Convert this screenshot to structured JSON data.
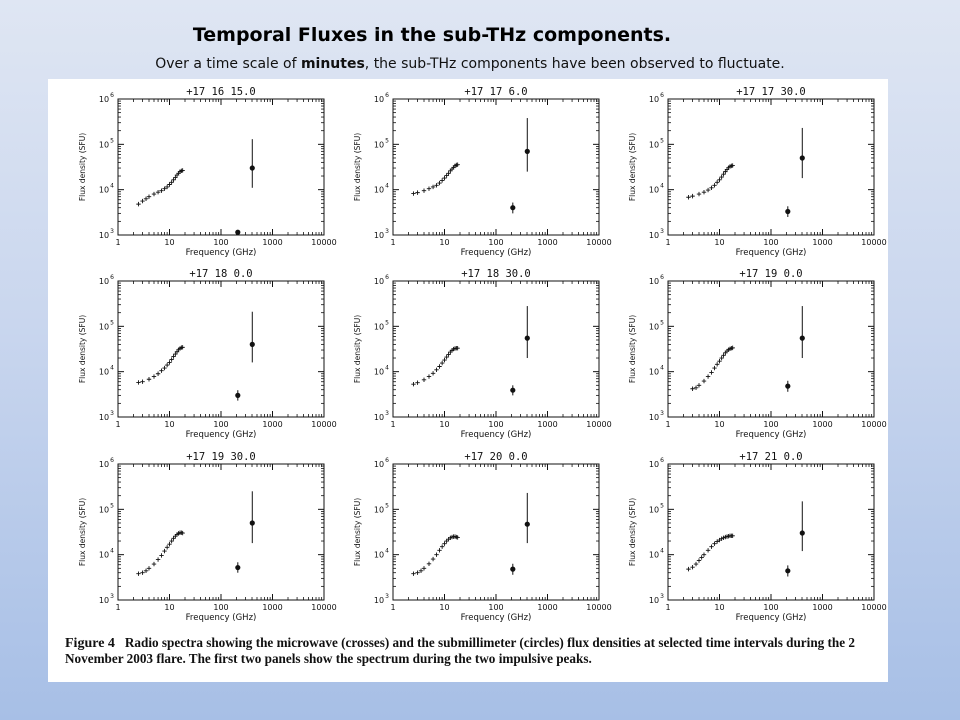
{
  "slide": {
    "title": "Temporal Fluxes in the sub-THz components.",
    "subtitle": {
      "before": "Over a time scale of ",
      "emphasis": "minutes",
      "after": ", the sub-THz components have been observed to fluctuate."
    }
  },
  "figure": {
    "label": "Figure 4",
    "caption": "Radio spectra showing the microwave (crosses) and the submillimeter (circles) flux densities at selected time intervals during the 2 November 2003 flare. The first two panels show the spectrum during the two impulsive peaks."
  },
  "colors": {
    "ink": "#111111",
    "background_top": "#dfe6f3",
    "background_bottom": "#a7bfe6",
    "frame": "#ffffff"
  },
  "chart_data": {
    "type": "scatter",
    "grid": false,
    "layout": "3x3 panels",
    "xlabel": "Frequency (GHz)",
    "ylabel": "Flux density (SFU)",
    "xscale": "log",
    "yscale": "log",
    "xlim": [
      1,
      10000
    ],
    "ylim": [
      1000,
      1000000
    ],
    "x_ticks": [
      "1",
      "10",
      "100",
      "1000",
      "10000"
    ],
    "y_tick_exponents": [
      "3",
      "4",
      "5",
      "6"
    ],
    "panels": [
      {
        "title": "+17 16 15.0",
        "microwave": [
          [
            2.5,
            4800
          ],
          [
            3,
            5600
          ],
          [
            3.5,
            6300
          ],
          [
            4,
            7000
          ],
          [
            5,
            8000
          ],
          [
            6,
            8800
          ],
          [
            7,
            9500
          ],
          [
            8,
            10500
          ],
          [
            9,
            11500
          ],
          [
            10,
            13000
          ],
          [
            11,
            14500
          ],
          [
            12,
            16500
          ],
          [
            13,
            18500
          ],
          [
            14,
            21000
          ],
          [
            15,
            23000
          ],
          [
            16,
            25000
          ],
          [
            17,
            26000
          ],
          [
            18,
            26500
          ]
        ],
        "submm": [
          {
            "x": 212,
            "y": 1150,
            "lo": 1050,
            "hi": 1250
          },
          {
            "x": 405,
            "y": 30000,
            "lo": 11000,
            "hi": 130000
          }
        ]
      },
      {
        "title": "+17 17 6.0",
        "microwave": [
          [
            2.5,
            8200
          ],
          [
            3,
            8600
          ],
          [
            4,
            9500
          ],
          [
            5,
            10500
          ],
          [
            6,
            11500
          ],
          [
            7,
            12500
          ],
          [
            8,
            14000
          ],
          [
            9,
            16000
          ],
          [
            10,
            18000
          ],
          [
            11,
            20500
          ],
          [
            12,
            23000
          ],
          [
            13,
            26000
          ],
          [
            14,
            28500
          ],
          [
            15,
            31000
          ],
          [
            16,
            33500
          ],
          [
            17,
            35000
          ],
          [
            18,
            35500
          ]
        ],
        "submm": [
          {
            "x": 212,
            "y": 4000,
            "lo": 3000,
            "hi": 5200
          },
          {
            "x": 405,
            "y": 70000,
            "lo": 25000,
            "hi": 380000
          }
        ]
      },
      {
        "title": "+17 17 30.0",
        "microwave": [
          [
            2.5,
            6800
          ],
          [
            3,
            7200
          ],
          [
            4,
            8000
          ],
          [
            5,
            8800
          ],
          [
            6,
            9800
          ],
          [
            7,
            11000
          ],
          [
            8,
            12500
          ],
          [
            9,
            14500
          ],
          [
            10,
            16500
          ],
          [
            11,
            19000
          ],
          [
            12,
            22000
          ],
          [
            13,
            25000
          ],
          [
            14,
            28000
          ],
          [
            15,
            30500
          ],
          [
            16,
            32500
          ],
          [
            17,
            33500
          ],
          [
            18,
            34000
          ]
        ],
        "submm": [
          {
            "x": 212,
            "y": 3300,
            "lo": 2500,
            "hi": 4300
          },
          {
            "x": 405,
            "y": 50000,
            "lo": 18000,
            "hi": 230000
          }
        ]
      },
      {
        "title": "+17 18 0.0",
        "microwave": [
          [
            2.5,
            5800
          ],
          [
            3,
            6000
          ],
          [
            4,
            6800
          ],
          [
            5,
            7800
          ],
          [
            6,
            9000
          ],
          [
            7,
            10500
          ],
          [
            8,
            12000
          ],
          [
            9,
            14000
          ],
          [
            10,
            16000
          ],
          [
            11,
            18500
          ],
          [
            12,
            21500
          ],
          [
            13,
            24500
          ],
          [
            14,
            27500
          ],
          [
            15,
            30500
          ],
          [
            16,
            32500
          ],
          [
            17,
            34000
          ],
          [
            18,
            34500
          ]
        ],
        "submm": [
          {
            "x": 212,
            "y": 3000,
            "lo": 2300,
            "hi": 3900
          },
          {
            "x": 405,
            "y": 40000,
            "lo": 16000,
            "hi": 210000
          }
        ]
      },
      {
        "title": "+17 18 30.0",
        "microwave": [
          [
            2.5,
            5300
          ],
          [
            3,
            5700
          ],
          [
            4,
            6600
          ],
          [
            5,
            7800
          ],
          [
            6,
            9200
          ],
          [
            7,
            11000
          ],
          [
            8,
            13000
          ],
          [
            9,
            15500
          ],
          [
            10,
            18000
          ],
          [
            11,
            21000
          ],
          [
            12,
            24000
          ],
          [
            13,
            27000
          ],
          [
            14,
            29500
          ],
          [
            15,
            31500
          ],
          [
            16,
            32500
          ],
          [
            17,
            33000
          ],
          [
            18,
            33000
          ]
        ],
        "submm": [
          {
            "x": 212,
            "y": 3900,
            "lo": 3000,
            "hi": 5000
          },
          {
            "x": 405,
            "y": 55000,
            "lo": 20000,
            "hi": 280000
          }
        ]
      },
      {
        "title": "+17 19 0.0",
        "microwave": [
          [
            3,
            4200
          ],
          [
            3.5,
            4400
          ],
          [
            4,
            5000
          ],
          [
            5,
            6200
          ],
          [
            6,
            7800
          ],
          [
            7,
            9600
          ],
          [
            8,
            12000
          ],
          [
            9,
            14500
          ],
          [
            10,
            17000
          ],
          [
            11,
            20000
          ],
          [
            12,
            23000
          ],
          [
            13,
            26000
          ],
          [
            14,
            28500
          ],
          [
            15,
            30500
          ],
          [
            16,
            32000
          ],
          [
            17,
            33000
          ],
          [
            18,
            33500
          ]
        ],
        "submm": [
          {
            "x": 212,
            "y": 4800,
            "lo": 3600,
            "hi": 6300
          },
          {
            "x": 405,
            "y": 55000,
            "lo": 20000,
            "hi": 280000
          }
        ]
      },
      {
        "title": "+17 19 30.0",
        "microwave": [
          [
            2.5,
            3800
          ],
          [
            3,
            4000
          ],
          [
            3.5,
            4400
          ],
          [
            4,
            5000
          ],
          [
            5,
            6200
          ],
          [
            6,
            7800
          ],
          [
            7,
            9600
          ],
          [
            8,
            12000
          ],
          [
            9,
            14500
          ],
          [
            10,
            17000
          ],
          [
            11,
            20000
          ],
          [
            12,
            23000
          ],
          [
            13,
            25500
          ],
          [
            14,
            28000
          ],
          [
            15,
            29500
          ],
          [
            16,
            30500
          ],
          [
            17,
            30500
          ],
          [
            18,
            30000
          ]
        ],
        "submm": [
          {
            "x": 212,
            "y": 5200,
            "lo": 4000,
            "hi": 6800
          },
          {
            "x": 405,
            "y": 50000,
            "lo": 18000,
            "hi": 250000
          }
        ]
      },
      {
        "title": "+17 20 0.0",
        "microwave": [
          [
            2.5,
            3800
          ],
          [
            3,
            4000
          ],
          [
            3.5,
            4400
          ],
          [
            4,
            5000
          ],
          [
            5,
            6300
          ],
          [
            6,
            8000
          ],
          [
            7,
            10000
          ],
          [
            8,
            12500
          ],
          [
            9,
            15000
          ],
          [
            10,
            17500
          ],
          [
            11,
            20000
          ],
          [
            12,
            22000
          ],
          [
            13,
            23500
          ],
          [
            14,
            24500
          ],
          [
            15,
            25000
          ],
          [
            16,
            25000
          ],
          [
            17,
            24500
          ],
          [
            18,
            24000
          ]
        ],
        "submm": [
          {
            "x": 212,
            "y": 4800,
            "lo": 3600,
            "hi": 6300
          },
          {
            "x": 405,
            "y": 47000,
            "lo": 18000,
            "hi": 230000
          }
        ]
      },
      {
        "title": "+17 21 0.0",
        "microwave": [
          [
            2.5,
            4800
          ],
          [
            3,
            5300
          ],
          [
            3.5,
            6200
          ],
          [
            4,
            7400
          ],
          [
            4.5,
            8700
          ],
          [
            5,
            10000
          ],
          [
            6,
            12500
          ],
          [
            7,
            15000
          ],
          [
            8,
            17500
          ],
          [
            9,
            19500
          ],
          [
            10,
            21000
          ],
          [
            11,
            22500
          ],
          [
            12,
            23500
          ],
          [
            13,
            24500
          ],
          [
            14,
            25000
          ],
          [
            15,
            25500
          ],
          [
            16,
            26000
          ],
          [
            17,
            26000
          ],
          [
            18,
            26000
          ]
        ],
        "submm": [
          {
            "x": 212,
            "y": 4400,
            "lo": 3300,
            "hi": 5800
          },
          {
            "x": 405,
            "y": 30000,
            "lo": 12000,
            "hi": 150000
          }
        ]
      }
    ]
  }
}
